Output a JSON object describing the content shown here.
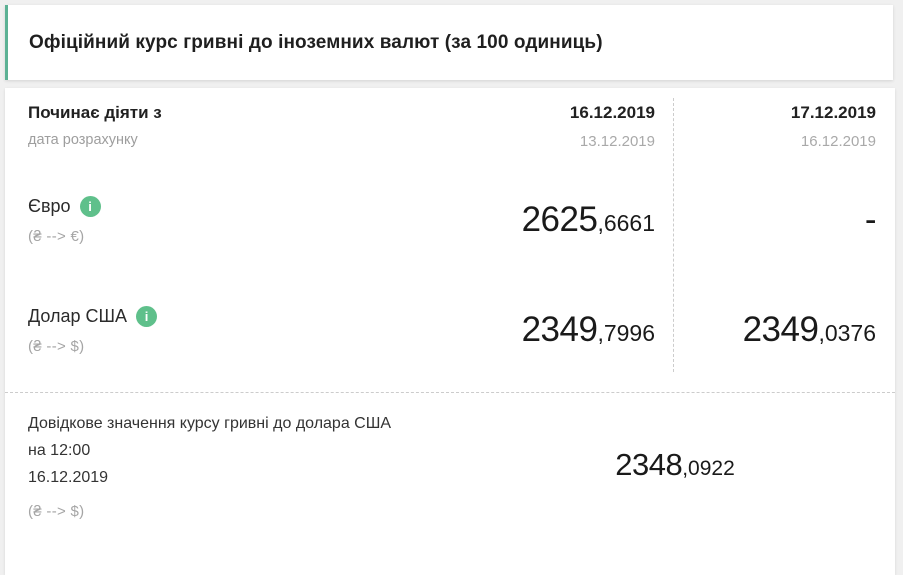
{
  "header": {
    "title": "Офіційний курс гривні до іноземних валют (за 100 одиниць)"
  },
  "table": {
    "header_row": {
      "label": "Починає діяти з",
      "sublabel": "дата розрахунку",
      "col1": {
        "effective": "16.12.2019",
        "calc": "13.12.2019"
      },
      "col2": {
        "effective": "17.12.2019",
        "calc": "16.12.2019"
      }
    },
    "rows": [
      {
        "name": "Євро",
        "pair": "(₴ --> €)",
        "col1_int": "2625",
        "col1_frac": ",6661",
        "col2_int": "-",
        "col2_frac": ""
      },
      {
        "name": "Долар США",
        "pair": "(₴ --> $)",
        "col1_int": "2349",
        "col1_frac": ",7996",
        "col2_int": "2349",
        "col2_frac": ",0376"
      }
    ]
  },
  "reference": {
    "title": "Довідкове значення курсу гривні до долара США",
    "time": "на 12:00",
    "date": "16.12.2019",
    "pair": "(₴ --> $)",
    "value_int": "2348",
    "value_frac": ",0922"
  },
  "icons": {
    "info_glyph": "i"
  },
  "colors": {
    "accent_green": "#5fc08b",
    "header_accent": "#5cb194",
    "dashed_line": "#cccccc",
    "muted_text": "#9e9e9e"
  }
}
